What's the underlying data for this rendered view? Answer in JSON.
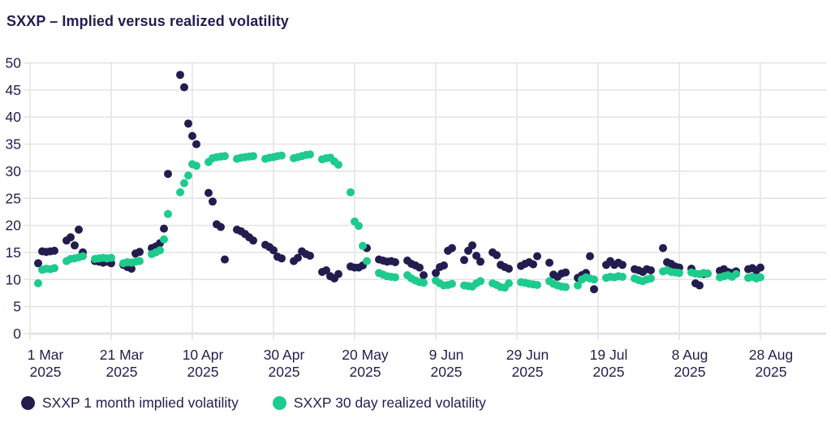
{
  "title": "SXXP – Implied versus realized volatility",
  "legend": [
    {
      "label": "SXXP 1 month implied volatility",
      "color": "#231d4f"
    },
    {
      "label": "SXXP 30 day realized volatility",
      "color": "#1ecb8c"
    }
  ],
  "colors": {
    "implied": "#231d4f",
    "realized": "#1ecb8c",
    "text": "#231d4f",
    "gridline": "#e3e3e3",
    "axisline": "#d9d9d9",
    "background": "#ffffff"
  },
  "chart_data": {
    "type": "scatter",
    "title": "SXXP – Implied versus realized volatility",
    "xlabel": "",
    "ylabel": "",
    "grid": true,
    "legend_position": "bottom",
    "x_axis": {
      "start_date": "2025-03-01",
      "x_ticks": [
        {
          "day": 0,
          "line1": "1 Mar",
          "line2": "2025"
        },
        {
          "day": 20,
          "line1": "21 Mar",
          "line2": "2025"
        },
        {
          "day": 40,
          "line1": "10 Apr",
          "line2": "2025"
        },
        {
          "day": 60,
          "line1": "30 Apr",
          "line2": "2025"
        },
        {
          "day": 80,
          "line1": "20 May",
          "line2": "2025"
        },
        {
          "day": 100,
          "line1": "9 Jun",
          "line2": "2025"
        },
        {
          "day": 120,
          "line1": "29 Jun",
          "line2": "2025"
        },
        {
          "day": 140,
          "line1": "19 Jul",
          "line2": "2025"
        },
        {
          "day": 160,
          "line1": "8 Aug",
          "line2": "2025"
        },
        {
          "day": 180,
          "line1": "28 Aug",
          "line2": "2025"
        }
      ]
    },
    "y_axis": {
      "min": 0,
      "max": 50,
      "step": 5,
      "ticks": [
        0,
        5,
        10,
        15,
        20,
        25,
        30,
        35,
        40,
        45,
        50
      ]
    },
    "dates": [
      "2025-03-03",
      "2025-03-04",
      "2025-03-05",
      "2025-03-06",
      "2025-03-07",
      "2025-03-10",
      "2025-03-11",
      "2025-03-12",
      "2025-03-13",
      "2025-03-14",
      "2025-03-17",
      "2025-03-18",
      "2025-03-19",
      "2025-03-20",
      "2025-03-21",
      "2025-03-24",
      "2025-03-25",
      "2025-03-26",
      "2025-03-27",
      "2025-03-28",
      "2025-03-31",
      "2025-04-01",
      "2025-04-02",
      "2025-04-03",
      "2025-04-04",
      "2025-04-07",
      "2025-04-08",
      "2025-04-09",
      "2025-04-10",
      "2025-04-11",
      "2025-04-14",
      "2025-04-15",
      "2025-04-16",
      "2025-04-17",
      "2025-04-18",
      "2025-04-21",
      "2025-04-22",
      "2025-04-23",
      "2025-04-24",
      "2025-04-25",
      "2025-04-28",
      "2025-04-29",
      "2025-04-30",
      "2025-05-01",
      "2025-05-02",
      "2025-05-05",
      "2025-05-06",
      "2025-05-07",
      "2025-05-08",
      "2025-05-09",
      "2025-05-12",
      "2025-05-13",
      "2025-05-14",
      "2025-05-15",
      "2025-05-16",
      "2025-05-19",
      "2025-05-20",
      "2025-05-21",
      "2025-05-22",
      "2025-05-23",
      "2025-05-26",
      "2025-05-27",
      "2025-05-28",
      "2025-05-29",
      "2025-05-30",
      "2025-06-02",
      "2025-06-03",
      "2025-06-04",
      "2025-06-05",
      "2025-06-06",
      "2025-06-09",
      "2025-06-10",
      "2025-06-11",
      "2025-06-12",
      "2025-06-13",
      "2025-06-16",
      "2025-06-17",
      "2025-06-18",
      "2025-06-19",
      "2025-06-20",
      "2025-06-23",
      "2025-06-24",
      "2025-06-25",
      "2025-06-26",
      "2025-06-27",
      "2025-06-30",
      "2025-07-01",
      "2025-07-02",
      "2025-07-03",
      "2025-07-04",
      "2025-07-07",
      "2025-07-08",
      "2025-07-09",
      "2025-07-10",
      "2025-07-11",
      "2025-07-14",
      "2025-07-15",
      "2025-07-16",
      "2025-07-17",
      "2025-07-18",
      "2025-07-21",
      "2025-07-22",
      "2025-07-23",
      "2025-07-24",
      "2025-07-25",
      "2025-07-28",
      "2025-07-29",
      "2025-07-30",
      "2025-07-31",
      "2025-08-01",
      "2025-08-04",
      "2025-08-05",
      "2025-08-06",
      "2025-08-07",
      "2025-08-08",
      "2025-08-11",
      "2025-08-12",
      "2025-08-13",
      "2025-08-14",
      "2025-08-15",
      "2025-08-18",
      "2025-08-19",
      "2025-08-20",
      "2025-08-21",
      "2025-08-22",
      "2025-08-25",
      "2025-08-26",
      "2025-08-27",
      "2025-08-28"
    ],
    "series": [
      {
        "name": "SXXP 1 month implied volatility",
        "color": "#231d4f",
        "values": [
          13.0,
          15.2,
          15.1,
          15.2,
          15.3,
          17.2,
          17.8,
          16.3,
          19.2,
          15.0,
          13.4,
          13.3,
          13.1,
          13.3,
          13.0,
          12.7,
          12.3,
          12.0,
          14.8,
          15.1,
          15.8,
          16.1,
          16.7,
          19.4,
          29.5,
          47.8,
          45.5,
          38.8,
          36.5,
          35.0,
          26.0,
          24.4,
          20.2,
          19.7,
          13.7,
          19.2,
          18.9,
          18.4,
          17.8,
          17.2,
          16.4,
          16.0,
          15.4,
          14.2,
          13.9,
          13.4,
          14.0,
          15.2,
          14.7,
          14.4,
          11.4,
          11.7,
          10.6,
          10.2,
          11.0,
          12.4,
          12.2,
          12.2,
          12.6,
          15.8,
          13.7,
          13.5,
          13.3,
          13.4,
          13.2,
          13.5,
          12.9,
          12.6,
          12.2,
          10.8,
          11.2,
          12.3,
          12.6,
          15.3,
          15.8,
          13.6,
          15.3,
          16.3,
          14.4,
          13.3,
          15.0,
          14.5,
          12.7,
          12.3,
          12.0,
          12.5,
          12.9,
          13.2,
          12.8,
          14.3,
          13.1,
          10.9,
          10.5,
          11.1,
          11.3,
          10.3,
          10.8,
          11.2,
          14.3,
          8.2,
          12.7,
          13.4,
          12.7,
          13.1,
          12.7,
          11.9,
          11.7,
          11.4,
          11.9,
          11.7,
          15.8,
          13.2,
          12.9,
          12.4,
          12.2,
          12.0,
          9.3,
          8.9,
          11.0,
          11.1,
          11.6,
          11.9,
          11.4,
          11.2,
          11.5,
          11.9,
          12.1,
          11.7,
          12.2
        ]
      },
      {
        "name": "SXXP 30 day realized volatility",
        "color": "#1ecb8c",
        "values": [
          9.3,
          11.8,
          12.0,
          11.9,
          12.1,
          13.4,
          13.8,
          13.9,
          14.1,
          14.3,
          13.8,
          13.9,
          14.0,
          13.9,
          14.0,
          13.0,
          13.2,
          13.1,
          13.3,
          13.4,
          14.7,
          15.0,
          15.4,
          17.4,
          22.1,
          26.1,
          27.8,
          29.2,
          31.3,
          31.0,
          31.7,
          32.4,
          32.6,
          32.7,
          32.8,
          32.3,
          32.5,
          32.6,
          32.7,
          32.8,
          32.3,
          32.5,
          32.6,
          32.8,
          32.9,
          32.4,
          32.6,
          32.8,
          33.0,
          33.1,
          32.2,
          32.4,
          32.5,
          31.8,
          31.2,
          26.1,
          20.7,
          19.9,
          16.2,
          13.4,
          11.2,
          10.9,
          10.6,
          10.5,
          10.4,
          10.8,
          10.2,
          9.8,
          9.5,
          9.4,
          9.8,
          9.3,
          8.9,
          9.0,
          9.2,
          8.9,
          8.8,
          8.7,
          9.3,
          9.7,
          9.3,
          9.0,
          8.6,
          8.5,
          9.3,
          9.5,
          9.4,
          9.2,
          9.1,
          9.0,
          9.7,
          9.2,
          8.9,
          8.7,
          8.6,
          8.9,
          10.0,
          10.4,
          10.2,
          10.0,
          10.3,
          10.5,
          10.4,
          10.6,
          10.5,
          10.2,
          9.9,
          9.7,
          10.0,
          10.2,
          11.5,
          11.7,
          11.4,
          11.3,
          11.2,
          11.3,
          11.1,
          11.0,
          11.2,
          11.1,
          10.4,
          10.6,
          10.8,
          10.5,
          11.0,
          10.3,
          10.5,
          10.2,
          10.4
        ]
      }
    ]
  }
}
